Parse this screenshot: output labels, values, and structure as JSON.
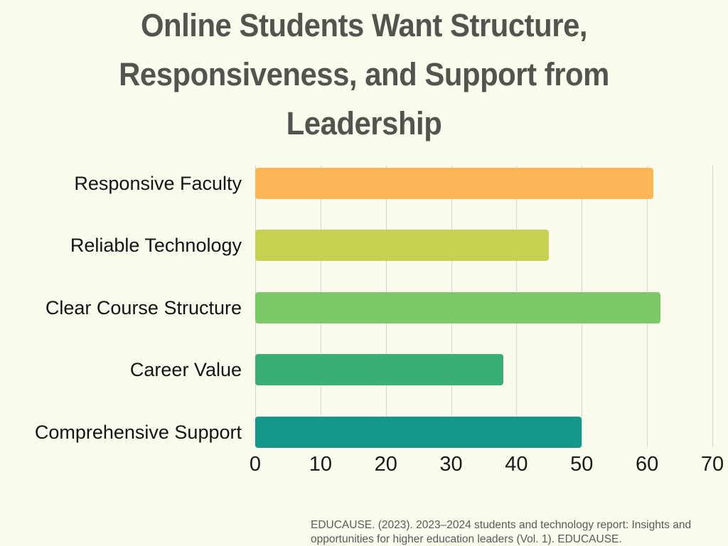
{
  "page": {
    "background": "#FBFCEE"
  },
  "title": {
    "lines": [
      "Online Students Want Structure,",
      "Responsiveness, and Support from",
      "Leadership"
    ],
    "color": "#55534E"
  },
  "source": {
    "lines": [
      "EDUCAUSE. (2023). 2023–2024 students and technology report: Insights and",
      "opportunities for higher education leaders (Vol. 1). EDUCAUSE."
    ],
    "color": "#595959"
  },
  "chart_data": {
    "type": "bar",
    "orientation": "horizontal",
    "title": "Online Students Want Structure, Responsiveness, and Support from Leadership",
    "categories": [
      "Responsive Faculty",
      "Reliable Technology",
      "Clear Course Structure",
      "Career Value",
      "Comprehensive Support"
    ],
    "values": [
      61,
      45,
      62,
      38,
      50
    ],
    "bar_colors": [
      "#FBB757",
      "#C6D051",
      "#7BC868",
      "#3BAE75",
      "#159889"
    ],
    "xlabel": "",
    "ylabel": "",
    "xlim": [
      0,
      70
    ],
    "xticks": [
      0,
      10,
      20,
      30,
      40,
      50,
      60,
      70
    ],
    "grid": true,
    "gridline_color": "#D6D6CB",
    "legend": "none",
    "source": "EDUCAUSE. (2023). 2023–2024 students and technology report: Insights and opportunities for higher education leaders (Vol. 1). EDUCAUSE."
  }
}
